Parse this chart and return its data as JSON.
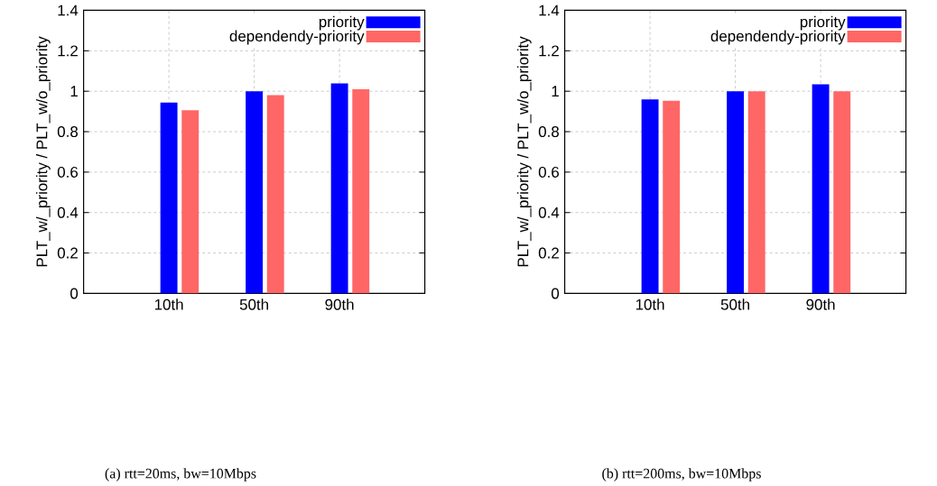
{
  "chart_data": [
    {
      "type": "bar",
      "title": "(a)  rtt=20ms, bw=10Mbps",
      "ylabel": "PLT_w/_priority / PLT_w/o_priority",
      "categories": [
        "10th",
        "50th",
        "90th"
      ],
      "series": [
        {
          "name": "priority",
          "color": "#0000ff",
          "values": [
            0.944,
            1.0,
            1.039
          ]
        },
        {
          "name": "dependendy-priority",
          "color": "#ff6666",
          "values": [
            0.906,
            0.981,
            1.01
          ]
        }
      ],
      "ylim": [
        0,
        1.4
      ],
      "yticks": [
        0,
        0.2,
        0.4,
        0.6,
        0.8,
        1,
        1.2,
        1.4
      ],
      "grid": true,
      "legend": "top right"
    },
    {
      "type": "bar",
      "title": "(b)  rtt=200ms, bw=10Mbps",
      "ylabel": "PLT_w/_priority / PLT_w/o_priority",
      "categories": [
        "10th",
        "50th",
        "90th"
      ],
      "series": [
        {
          "name": "priority",
          "color": "#0000ff",
          "values": [
            0.96,
            1.0,
            1.034
          ]
        },
        {
          "name": "dependendy-priority",
          "color": "#ff6666",
          "values": [
            0.953,
            1.0,
            1.0
          ]
        }
      ],
      "ylim": [
        0,
        1.4
      ],
      "yticks": [
        0,
        0.2,
        0.4,
        0.6,
        0.8,
        1,
        1.2,
        1.4
      ],
      "grid": true,
      "legend": "top right"
    }
  ]
}
